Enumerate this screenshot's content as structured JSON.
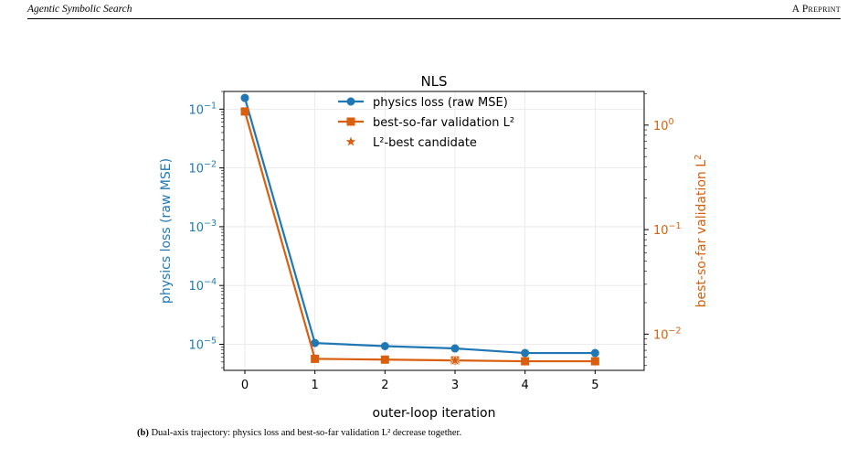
{
  "header": {
    "left": "Agentic Symbolic Search",
    "right": "A Preprint"
  },
  "caption": {
    "tag": "(b)",
    "text": "Dual-axis trajectory: physics loss and best-so-far validation L² decrease together."
  },
  "colors": {
    "physics": "#1f77b4",
    "validation": "#d95f0e"
  },
  "chart_data": {
    "type": "line",
    "title": "NLS",
    "xlabel": "outer-loop iteration",
    "ylabel_left": "physics loss (raw MSE)",
    "ylabel_right": "best-so-far validation L²",
    "x": [
      0,
      1,
      2,
      3,
      4,
      5
    ],
    "xticks": [
      "0",
      "1",
      "2",
      "3",
      "4",
      "5"
    ],
    "xlim": [
      -0.3,
      5.7
    ],
    "y_left_scale": "log",
    "y_left_lim": [
      3.6e-06,
      0.2
    ],
    "y_left_ticks": [
      {
        "value": 1e-05,
        "mant": "10",
        "exp": "−5"
      },
      {
        "value": 0.0001,
        "mant": "10",
        "exp": "−4"
      },
      {
        "value": 0.001,
        "mant": "10",
        "exp": "−3"
      },
      {
        "value": 0.01,
        "mant": "10",
        "exp": "−2"
      },
      {
        "value": 0.1,
        "mant": "10",
        "exp": "−1"
      }
    ],
    "y_right_scale": "log",
    "y_right_lim": [
      0.0045,
      2.1
    ],
    "y_right_ticks": [
      {
        "value": 0.01,
        "mant": "10",
        "exp": "−2"
      },
      {
        "value": 0.1,
        "mant": "10",
        "exp": "−1"
      },
      {
        "value": 1,
        "mant": "10",
        "exp": "0"
      }
    ],
    "series": [
      {
        "name": "physics loss (raw MSE)",
        "axis": "left",
        "marker": "circle",
        "values": [
          0.155,
          1.05e-05,
          9.3e-06,
          8.5e-06,
          7.1e-06,
          7.1e-06
        ]
      },
      {
        "name": "best-so-far validation L²",
        "axis": "right",
        "marker": "square",
        "values": [
          1.35,
          0.0058,
          0.0057,
          0.0056,
          0.0055,
          0.0055
        ]
      }
    ],
    "highlight": {
      "name": "L²-best candidate",
      "marker": "star",
      "x": 3,
      "value": 0.0056,
      "axis": "right"
    },
    "legend_position": "top-center",
    "grid": true
  }
}
